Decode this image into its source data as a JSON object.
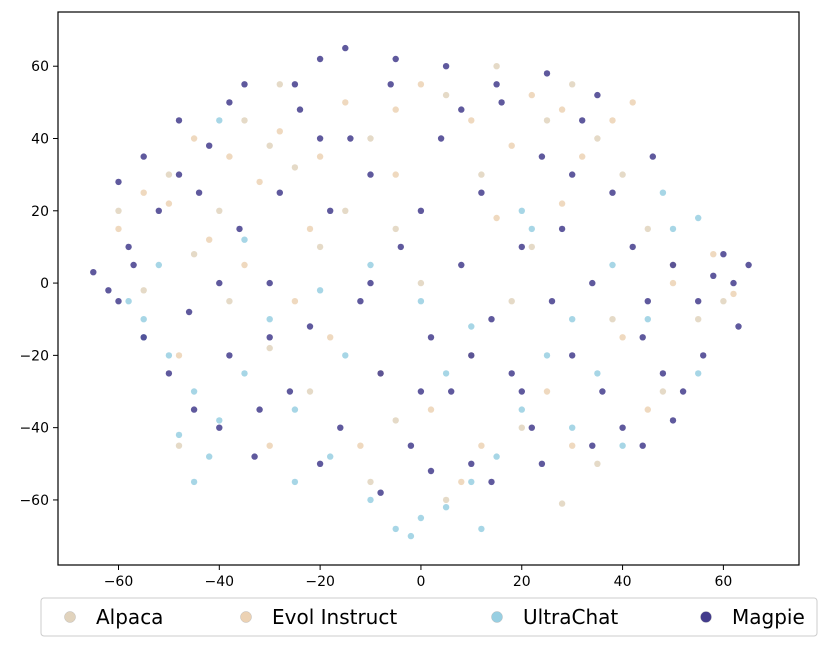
{
  "chart_data": {
    "type": "scatter",
    "title": "",
    "xlabel": "",
    "ylabel": "",
    "xlim": [
      -72,
      75
    ],
    "ylim": [
      -78,
      75
    ],
    "x_ticks": [
      -60,
      -40,
      -20,
      0,
      20,
      40,
      60
    ],
    "y_ticks": [
      -60,
      -40,
      -20,
      0,
      20,
      40,
      60
    ],
    "x_tick_labels": [
      "−60",
      "−40",
      "−20",
      "0",
      "20",
      "40",
      "60"
    ],
    "y_tick_labels": [
      "−60",
      "−40",
      "−20",
      "0",
      "20",
      "40",
      "60"
    ],
    "grid": false,
    "legend_position": "bottom",
    "series": [
      {
        "name": "Alpaca",
        "color": "#e1d3bd",
        "points": [
          [
            -50,
            30
          ],
          [
            -35,
            45
          ],
          [
            -30,
            38
          ],
          [
            -25,
            32
          ],
          [
            -40,
            20
          ],
          [
            -45,
            8
          ],
          [
            -38,
            -5
          ],
          [
            -30,
            -18
          ],
          [
            -20,
            10
          ],
          [
            -10,
            40
          ],
          [
            -5,
            -38
          ],
          [
            5,
            52
          ],
          [
            15,
            60
          ],
          [
            25,
            45
          ],
          [
            30,
            55
          ],
          [
            35,
            40
          ],
          [
            40,
            30
          ],
          [
            45,
            15
          ],
          [
            50,
            5
          ],
          [
            55,
            -10
          ],
          [
            48,
            -30
          ],
          [
            35,
            -50
          ],
          [
            20,
            -40
          ],
          [
            10,
            -20
          ],
          [
            0,
            0
          ],
          [
            -10,
            -55
          ],
          [
            -15,
            20
          ],
          [
            -22,
            -30
          ],
          [
            28,
            -61
          ],
          [
            60,
            -5
          ],
          [
            -60,
            20
          ],
          [
            -55,
            -2
          ],
          [
            -48,
            -45
          ],
          [
            12,
            30
          ],
          [
            22,
            10
          ],
          [
            -28,
            55
          ],
          [
            5,
            -60
          ],
          [
            38,
            -10
          ],
          [
            -5,
            15
          ],
          [
            18,
            -5
          ]
        ]
      },
      {
        "name": "Evol Instruct",
        "color": "#ecd2b4",
        "points": [
          [
            -45,
            40
          ],
          [
            -38,
            35
          ],
          [
            -32,
            28
          ],
          [
            -28,
            42
          ],
          [
            -20,
            35
          ],
          [
            -15,
            50
          ],
          [
            -5,
            48
          ],
          [
            0,
            55
          ],
          [
            10,
            45
          ],
          [
            18,
            38
          ],
          [
            22,
            52
          ],
          [
            28,
            48
          ],
          [
            32,
            35
          ],
          [
            38,
            45
          ],
          [
            42,
            50
          ],
          [
            -50,
            22
          ],
          [
            -42,
            12
          ],
          [
            -35,
            5
          ],
          [
            -25,
            -5
          ],
          [
            -18,
            -15
          ],
          [
            -8,
            -25
          ],
          [
            2,
            -35
          ],
          [
            12,
            -45
          ],
          [
            25,
            -30
          ],
          [
            40,
            -15
          ],
          [
            50,
            0
          ],
          [
            58,
            8
          ],
          [
            -60,
            15
          ],
          [
            -55,
            25
          ],
          [
            -48,
            -20
          ],
          [
            -30,
            -45
          ],
          [
            -12,
            -45
          ],
          [
            8,
            -55
          ],
          [
            30,
            -45
          ],
          [
            45,
            -35
          ],
          [
            62,
            -3
          ],
          [
            -5,
            30
          ],
          [
            15,
            18
          ],
          [
            28,
            22
          ],
          [
            -22,
            15
          ]
        ]
      },
      {
        "name": "UltraChat",
        "color": "#98cfe2",
        "points": [
          [
            -55,
            -10
          ],
          [
            -50,
            -20
          ],
          [
            -45,
            -30
          ],
          [
            -40,
            -38
          ],
          [
            -48,
            -42
          ],
          [
            -42,
            -48
          ],
          [
            -35,
            -25
          ],
          [
            -30,
            -10
          ],
          [
            -25,
            -35
          ],
          [
            -18,
            -48
          ],
          [
            -10,
            -60
          ],
          [
            -5,
            -68
          ],
          [
            0,
            -65
          ],
          [
            5,
            -62
          ],
          [
            10,
            -55
          ],
          [
            15,
            -48
          ],
          [
            20,
            -35
          ],
          [
            25,
            -20
          ],
          [
            30,
            -10
          ],
          [
            35,
            -25
          ],
          [
            45,
            -10
          ],
          [
            50,
            15
          ],
          [
            55,
            18
          ],
          [
            48,
            25
          ],
          [
            20,
            20
          ],
          [
            22,
            15
          ],
          [
            -20,
            -2
          ],
          [
            -10,
            5
          ],
          [
            0,
            -5
          ],
          [
            10,
            -12
          ],
          [
            -35,
            12
          ],
          [
            -52,
            5
          ],
          [
            -58,
            -5
          ],
          [
            -45,
            -55
          ],
          [
            -25,
            -55
          ],
          [
            30,
            -40
          ],
          [
            40,
            -45
          ],
          [
            55,
            -25
          ],
          [
            -15,
            -20
          ],
          [
            5,
            -25
          ],
          [
            38,
            5
          ],
          [
            -40,
            45
          ],
          [
            -55,
            -15
          ],
          [
            12,
            -68
          ],
          [
            -2,
            -70
          ]
        ]
      },
      {
        "name": "Magpie",
        "color": "#433c8c",
        "points": [
          [
            -65,
            3
          ],
          [
            -60,
            -5
          ],
          [
            -58,
            10
          ],
          [
            -55,
            -15
          ],
          [
            -52,
            20
          ],
          [
            -50,
            -25
          ],
          [
            -48,
            30
          ],
          [
            -45,
            -35
          ],
          [
            -42,
            38
          ],
          [
            -40,
            -40
          ],
          [
            -38,
            -20
          ],
          [
            -36,
            15
          ],
          [
            -35,
            55
          ],
          [
            -33,
            -48
          ],
          [
            -30,
            0
          ],
          [
            -28,
            25
          ],
          [
            -26,
            -30
          ],
          [
            -24,
            48
          ],
          [
            -22,
            -12
          ],
          [
            -20,
            62
          ],
          [
            -18,
            20
          ],
          [
            -16,
            -40
          ],
          [
            -14,
            40
          ],
          [
            -12,
            -5
          ],
          [
            -10,
            30
          ],
          [
            -8,
            -25
          ],
          [
            -6,
            55
          ],
          [
            -4,
            10
          ],
          [
            -2,
            -45
          ],
          [
            0,
            20
          ],
          [
            2,
            -15
          ],
          [
            4,
            40
          ],
          [
            6,
            -30
          ],
          [
            8,
            5
          ],
          [
            10,
            -50
          ],
          [
            12,
            25
          ],
          [
            14,
            -10
          ],
          [
            16,
            50
          ],
          [
            18,
            -25
          ],
          [
            20,
            10
          ],
          [
            22,
            -40
          ],
          [
            24,
            35
          ],
          [
            26,
            -5
          ],
          [
            28,
            15
          ],
          [
            30,
            -20
          ],
          [
            32,
            45
          ],
          [
            34,
            0
          ],
          [
            36,
            -30
          ],
          [
            38,
            25
          ],
          [
            40,
            -40
          ],
          [
            42,
            10
          ],
          [
            44,
            -15
          ],
          [
            46,
            35
          ],
          [
            48,
            -25
          ],
          [
            50,
            5
          ],
          [
            52,
            -30
          ],
          [
            55,
            -5
          ],
          [
            58,
            2
          ],
          [
            60,
            8
          ],
          [
            62,
            0
          ],
          [
            65,
            5
          ],
          [
            -62,
            -2
          ],
          [
            -57,
            5
          ],
          [
            -46,
            -8
          ],
          [
            -44,
            25
          ],
          [
            -32,
            -35
          ],
          [
            -20,
            -50
          ],
          [
            -8,
            -58
          ],
          [
            2,
            -52
          ],
          [
            14,
            -55
          ],
          [
            24,
            -50
          ],
          [
            34,
            -45
          ],
          [
            44,
            -45
          ],
          [
            50,
            -38
          ],
          [
            56,
            -20
          ],
          [
            63,
            -12
          ],
          [
            -15,
            65
          ],
          [
            -5,
            62
          ],
          [
            5,
            60
          ],
          [
            15,
            55
          ],
          [
            25,
            58
          ],
          [
            35,
            52
          ],
          [
            -25,
            55
          ],
          [
            -38,
            50
          ],
          [
            -48,
            45
          ],
          [
            -55,
            35
          ],
          [
            -60,
            28
          ],
          [
            -10,
            0
          ],
          [
            0,
            -30
          ],
          [
            10,
            -20
          ],
          [
            -30,
            -15
          ],
          [
            20,
            -30
          ],
          [
            30,
            30
          ],
          [
            -40,
            0
          ],
          [
            45,
            -5
          ],
          [
            -20,
            40
          ],
          [
            8,
            48
          ]
        ]
      }
    ]
  }
}
